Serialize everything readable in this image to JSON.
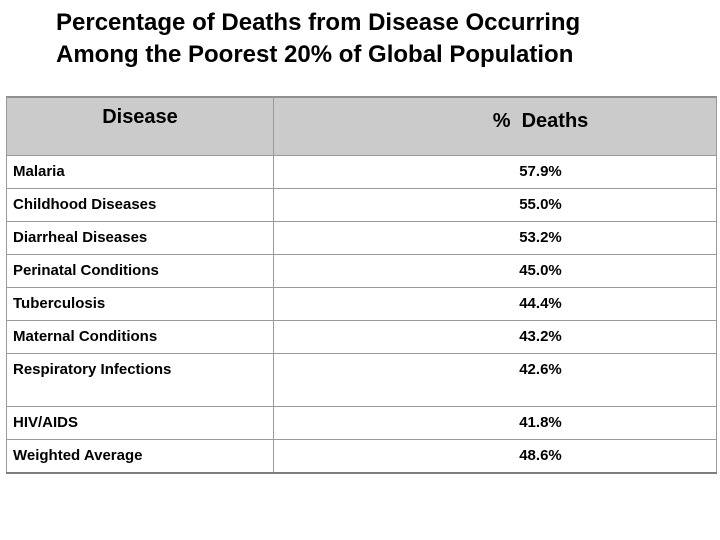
{
  "title": {
    "line1": "Percentage of Deaths from Disease Occurring",
    "line2": "Among the Poorest 20% of Global Population"
  },
  "table": {
    "headers": {
      "disease": "Disease",
      "deaths": "%  Deaths"
    },
    "rows": [
      {
        "disease": "Malaria",
        "pct": "57.9%"
      },
      {
        "disease": "Childhood Diseases",
        "pct": "55.0%"
      },
      {
        "disease": "Diarrheal Diseases",
        "pct": "53.2%"
      },
      {
        "disease": "Perinatal Conditions",
        "pct": "45.0%"
      },
      {
        "disease": "Tuberculosis",
        "pct": "44.4%"
      },
      {
        "disease": "Maternal Conditions",
        "pct": "43.2%"
      },
      {
        "disease": "Respiratory Infections",
        "pct": "42.6%"
      },
      {
        "disease": "HIV/AIDS",
        "pct": "41.8%"
      },
      {
        "disease": "Weighted Average",
        "pct": "48.6%"
      }
    ]
  },
  "colors": {
    "header_bg": "#cbcbcb",
    "border": "#9a9a9a",
    "text": "#000000"
  },
  "chart_data": {
    "type": "table",
    "title": "Percentage of Deaths from Disease Occurring Among the Poorest 20% of Global Population",
    "columns": [
      "Disease",
      "% Deaths"
    ],
    "rows": [
      [
        "Malaria",
        57.9
      ],
      [
        "Childhood Diseases",
        55.0
      ],
      [
        "Diarrheal Diseases",
        53.2
      ],
      [
        "Perinatal Conditions",
        45.0
      ],
      [
        "Tuberculosis",
        44.4
      ],
      [
        "Maternal Conditions",
        43.2
      ],
      [
        "Respiratory Infections",
        42.6
      ],
      [
        "HIV/AIDS",
        41.8
      ],
      [
        "Weighted Average",
        48.6
      ]
    ],
    "value_unit": "percent",
    "notes": "Two-column data table on white slide; header row has gray background; percentages centered in right column"
  }
}
